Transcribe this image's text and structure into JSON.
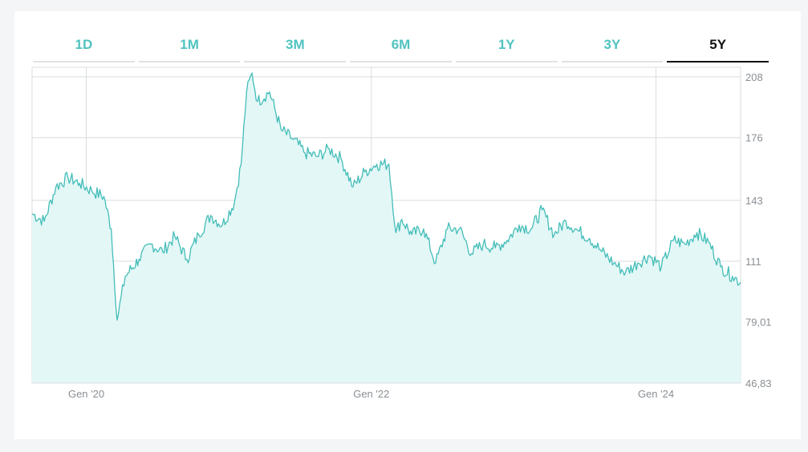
{
  "tabs": [
    {
      "label": "1D",
      "active": false
    },
    {
      "label": "1M",
      "active": false
    },
    {
      "label": "3M",
      "active": false
    },
    {
      "label": "6M",
      "active": false
    },
    {
      "label": "1Y",
      "active": false
    },
    {
      "label": "3Y",
      "active": false
    },
    {
      "label": "5Y",
      "active": true
    }
  ],
  "colors": {
    "accent": "#4fc3c0",
    "line": "#43bdb8",
    "area_fill": "#e3f7f6",
    "grid": "#d9dcdf",
    "active_tab": "#111111"
  },
  "chart_data": {
    "type": "area",
    "title": "",
    "xlabel": "",
    "ylabel": "",
    "grid": true,
    "y_axis_position": "right",
    "ylim": [
      46.83,
      213
    ],
    "yticks": [
      {
        "value": 46.83,
        "label": "46,83"
      },
      {
        "value": 79.01,
        "label": "79,01"
      },
      {
        "value": 111,
        "label": "111"
      },
      {
        "value": 143,
        "label": "143"
      },
      {
        "value": 176,
        "label": "176"
      },
      {
        "value": 208,
        "label": "208"
      }
    ],
    "xlim": [
      "2019-08-15",
      "2024-08-05"
    ],
    "xticks": [
      {
        "value": "2020-01-01",
        "label": "Gen '20"
      },
      {
        "value": "2022-01-01",
        "label": "Gen '22"
      },
      {
        "value": "2024-01-01",
        "label": "Gen '24"
      }
    ],
    "series": [
      {
        "x": [
          "2019-08-15",
          "2019-09-15",
          "2019-10-15",
          "2019-11-15",
          "2019-12-15",
          "2020-01-15",
          "2020-02-15",
          "2020-03-05",
          "2020-03-20",
          "2020-04-10",
          "2020-05-15",
          "2020-06-15",
          "2020-07-15",
          "2020-08-15",
          "2020-09-15",
          "2020-10-15",
          "2020-11-15",
          "2020-12-15",
          "2021-01-15",
          "2021-02-01",
          "2021-02-15",
          "2021-03-01",
          "2021-03-15",
          "2021-04-15",
          "2021-05-15",
          "2021-06-15",
          "2021-07-15",
          "2021-08-15",
          "2021-09-15",
          "2021-10-15",
          "2021-11-15",
          "2021-12-15",
          "2022-01-15",
          "2022-02-15",
          "2022-03-05",
          "2022-03-20",
          "2022-04-15",
          "2022-05-15",
          "2022-06-15",
          "2022-07-15",
          "2022-08-15",
          "2022-09-15",
          "2022-10-15",
          "2022-11-15",
          "2022-12-15",
          "2023-01-15",
          "2023-02-15",
          "2023-03-15",
          "2023-04-15",
          "2023-05-15",
          "2023-06-15",
          "2023-07-15",
          "2023-08-15",
          "2023-09-15",
          "2023-10-15",
          "2023-11-15",
          "2023-12-15",
          "2024-01-15",
          "2024-02-15",
          "2024-03-15",
          "2024-04-15",
          "2024-05-15",
          "2024-06-15",
          "2024-07-15",
          "2024-08-05"
        ],
        "y": [
          136,
          132,
          150,
          155,
          152,
          148,
          145,
          128,
          80,
          103,
          112,
          120,
          116,
          124,
          112,
          125,
          135,
          130,
          142,
          162,
          200,
          210,
          195,
          200,
          180,
          175,
          168,
          166,
          170,
          165,
          150,
          158,
          162,
          162,
          126,
          133,
          125,
          128,
          110,
          128,
          128,
          115,
          120,
          118,
          122,
          130,
          128,
          138,
          125,
          132,
          127,
          123,
          116,
          110,
          105,
          110,
          114,
          108,
          122,
          120,
          126,
          121,
          108,
          103,
          100
        ]
      }
    ]
  }
}
